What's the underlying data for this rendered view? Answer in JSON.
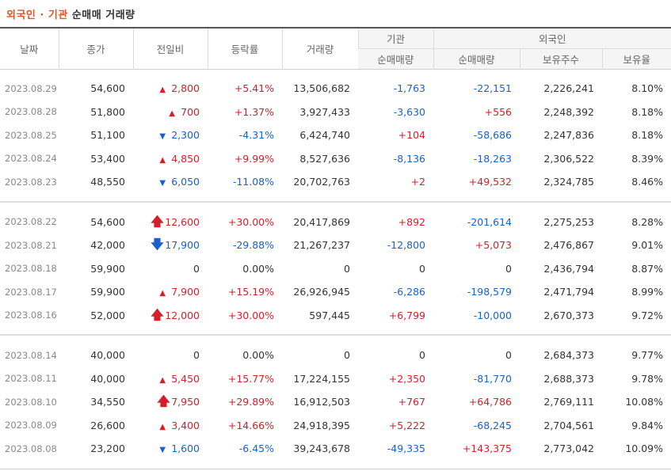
{
  "title": {
    "part1": "외국인 · 기관",
    "part2": "순매매 거래량"
  },
  "headers": {
    "date": "날짜",
    "close": "종가",
    "change": "전일비",
    "rate": "등락률",
    "volume": "거래량",
    "inst_group": "기관",
    "inst_net": "순매매량",
    "foreign_group": "외국인",
    "foreign_net": "순매매량",
    "foreign_hold": "보유주수",
    "foreign_ratio": "보유율"
  },
  "groups": [
    [
      {
        "date": "2023.08.29",
        "close": "54,600",
        "dir": "up",
        "arrow": "▲",
        "big": false,
        "change": "2,800",
        "rate": "+5.41%",
        "volume": "13,506,682",
        "inst": "-1,763",
        "foreign": "-22,151",
        "hold": "2,226,241",
        "ratio": "8.10%"
      },
      {
        "date": "2023.08.28",
        "close": "51,800",
        "dir": "up",
        "arrow": "▲",
        "big": false,
        "change": "700",
        "rate": "+1.37%",
        "volume": "3,927,433",
        "inst": "-3,630",
        "foreign": "+556",
        "hold": "2,248,392",
        "ratio": "8.18%"
      },
      {
        "date": "2023.08.25",
        "close": "51,100",
        "dir": "down",
        "arrow": "▼",
        "big": false,
        "change": "2,300",
        "rate": "-4.31%",
        "volume": "6,424,740",
        "inst": "+104",
        "foreign": "-58,686",
        "hold": "2,247,836",
        "ratio": "8.18%"
      },
      {
        "date": "2023.08.24",
        "close": "53,400",
        "dir": "up",
        "arrow": "▲",
        "big": false,
        "change": "4,850",
        "rate": "+9.99%",
        "volume": "8,527,636",
        "inst": "-8,136",
        "foreign": "-18,263",
        "hold": "2,306,522",
        "ratio": "8.39%"
      },
      {
        "date": "2023.08.23",
        "close": "48,550",
        "dir": "down",
        "arrow": "▼",
        "big": false,
        "change": "6,050",
        "rate": "-11.08%",
        "volume": "20,702,763",
        "inst": "+2",
        "foreign": "+49,532",
        "hold": "2,324,785",
        "ratio": "8.46%"
      }
    ],
    [
      {
        "date": "2023.08.22",
        "close": "54,600",
        "dir": "up",
        "arrow": "🡅",
        "big": true,
        "change": "12,600",
        "rate": "+30.00%",
        "volume": "20,417,869",
        "inst": "+892",
        "foreign": "-201,614",
        "hold": "2,275,253",
        "ratio": "8.28%"
      },
      {
        "date": "2023.08.21",
        "close": "42,000",
        "dir": "down",
        "arrow": "🡇",
        "big": true,
        "change": "17,900",
        "rate": "-29.88%",
        "volume": "21,267,237",
        "inst": "-12,800",
        "foreign": "+5,073",
        "hold": "2,476,867",
        "ratio": "9.01%"
      },
      {
        "date": "2023.08.18",
        "close": "59,900",
        "dir": "flat",
        "arrow": "",
        "big": false,
        "change": "0",
        "rate": "0.00%",
        "volume": "0",
        "inst": "0",
        "foreign": "0",
        "hold": "2,436,794",
        "ratio": "8.87%"
      },
      {
        "date": "2023.08.17",
        "close": "59,900",
        "dir": "up",
        "arrow": "▲",
        "big": false,
        "change": "7,900",
        "rate": "+15.19%",
        "volume": "26,926,945",
        "inst": "-6,286",
        "foreign": "-198,579",
        "hold": "2,471,794",
        "ratio": "8.99%"
      },
      {
        "date": "2023.08.16",
        "close": "52,000",
        "dir": "up",
        "arrow": "🡅",
        "big": true,
        "change": "12,000",
        "rate": "+30.00%",
        "volume": "597,445",
        "inst": "+6,799",
        "foreign": "-10,000",
        "hold": "2,670,373",
        "ratio": "9.72%"
      }
    ],
    [
      {
        "date": "2023.08.14",
        "close": "40,000",
        "dir": "flat",
        "arrow": "",
        "big": false,
        "change": "0",
        "rate": "0.00%",
        "volume": "0",
        "inst": "0",
        "foreign": "0",
        "hold": "2,684,373",
        "ratio": "9.77%"
      },
      {
        "date": "2023.08.11",
        "close": "40,000",
        "dir": "up",
        "arrow": "▲",
        "big": false,
        "change": "5,450",
        "rate": "+15.77%",
        "volume": "17,224,155",
        "inst": "+2,350",
        "foreign": "-81,770",
        "hold": "2,688,373",
        "ratio": "9.78%"
      },
      {
        "date": "2023.08.10",
        "close": "34,550",
        "dir": "up",
        "arrow": "🡅",
        "big": true,
        "change": "7,950",
        "rate": "+29.89%",
        "volume": "16,912,503",
        "inst": "+767",
        "foreign": "+64,786",
        "hold": "2,769,111",
        "ratio": "10.08%"
      },
      {
        "date": "2023.08.09",
        "close": "26,600",
        "dir": "up",
        "arrow": "▲",
        "big": false,
        "change": "3,400",
        "rate": "+14.66%",
        "volume": "24,918,395",
        "inst": "+5,222",
        "foreign": "-68,245",
        "hold": "2,704,561",
        "ratio": "9.84%"
      },
      {
        "date": "2023.08.08",
        "close": "23,200",
        "dir": "down",
        "arrow": "▼",
        "big": false,
        "change": "1,600",
        "rate": "-6.45%",
        "volume": "39,243,678",
        "inst": "-49,335",
        "foreign": "+143,375",
        "hold": "2,773,042",
        "ratio": "10.09%"
      }
    ]
  ],
  "colors": {
    "up": "#d2202a",
    "down": "#1a60c9",
    "title_accent": "#e8521f"
  }
}
